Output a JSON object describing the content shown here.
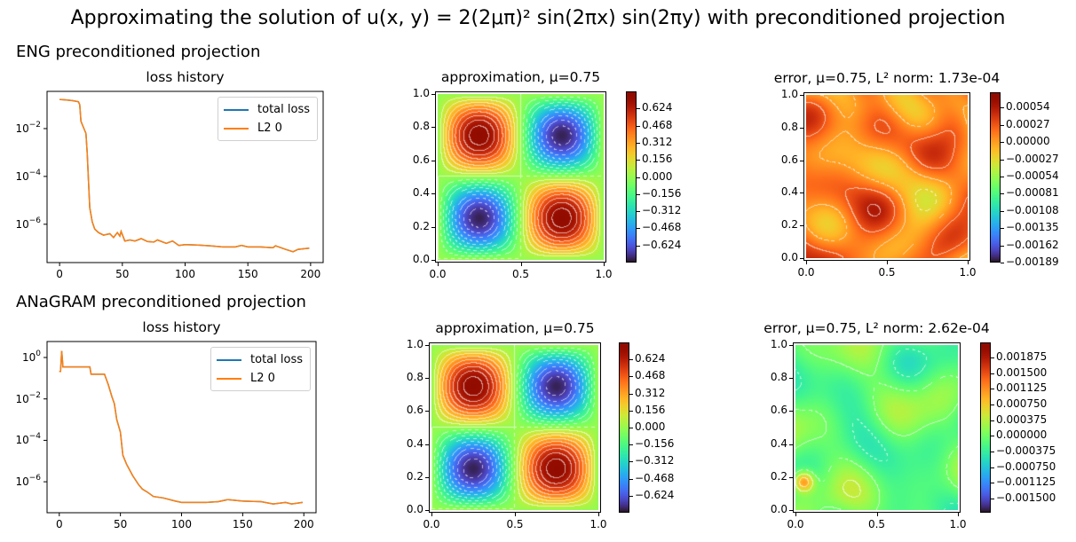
{
  "figure": {
    "title": "Approximating the solution of u(x, y) = 2(2μπ)² sin(2πx) sin(2πy) with preconditioned projection",
    "rows": [
      {
        "label": "ENG preconditioned projection"
      },
      {
        "label": "ANaGRAM preconditioned projection"
      }
    ]
  },
  "chart_data": [
    {
      "type": "line",
      "row": "ENG preconditioned projection",
      "title": "loss history",
      "xlabel": "",
      "ylabel": "",
      "yscale": "log",
      "xlim": [
        -10,
        210
      ],
      "ylim": [
        2.5e-08,
        0.36
      ],
      "xticks": [
        {
          "value": 0,
          "label": "0"
        },
        {
          "value": 50,
          "label": "50"
        },
        {
          "value": 100,
          "label": "100"
        },
        {
          "value": 150,
          "label": "150"
        },
        {
          "value": 200,
          "label": "200"
        }
      ],
      "yticks": [
        {
          "value": 0.01,
          "base": "10",
          "exp": "−2"
        },
        {
          "value": 0.0001,
          "base": "10",
          "exp": "−4"
        },
        {
          "value": 1e-06,
          "base": "10",
          "exp": "−6"
        }
      ],
      "grid": false,
      "legend": {
        "placement": "upper right",
        "entries": [
          "total loss",
          "L2 0"
        ]
      },
      "series": [
        {
          "name": "total loss",
          "color": "#1f77b4",
          "x": [
            0,
            5,
            10,
            15,
            16,
            17,
            19,
            21,
            22,
            23,
            24,
            26,
            28,
            31,
            35,
            40,
            43,
            46,
            48,
            49,
            52,
            56,
            60,
            65,
            70,
            75,
            78,
            85,
            90,
            95,
            100,
            110,
            120,
            130,
            140,
            145,
            150,
            160,
            170,
            172,
            180,
            186,
            190,
            199
          ],
          "y": [
            0.166,
            0.158,
            0.148,
            0.132,
            0.1,
            0.02,
            0.0112,
            0.0063,
            0.001,
            6.3e-05,
            5e-06,
            1.26e-06,
            6.3e-07,
            4.5e-07,
            3.5e-07,
            4e-07,
            2.8e-07,
            4.5e-07,
            3.2e-07,
            5e-07,
            2e-07,
            2.2e-07,
            2e-07,
            2.5e-07,
            1.9e-07,
            1.8e-07,
            2.2e-07,
            1.6e-07,
            2e-07,
            1.3e-07,
            1.4e-07,
            1.35e-07,
            1.26e-07,
            1.12e-07,
            1.12e-07,
            1.3e-07,
            1.12e-07,
            1.12e-07,
            1.05e-07,
            1.26e-07,
            8.9e-08,
            7.1e-08,
            8.9e-08,
            1e-07
          ]
        },
        {
          "name": "L2 0",
          "color": "#ff7f0e",
          "x": [
            0,
            5,
            10,
            15,
            16,
            17,
            19,
            21,
            22,
            23,
            24,
            26,
            28,
            31,
            35,
            40,
            43,
            46,
            48,
            49,
            52,
            56,
            60,
            65,
            70,
            75,
            78,
            85,
            90,
            95,
            100,
            110,
            120,
            130,
            140,
            145,
            150,
            160,
            170,
            172,
            180,
            186,
            190,
            199
          ],
          "y": [
            0.166,
            0.158,
            0.148,
            0.132,
            0.1,
            0.02,
            0.0112,
            0.0063,
            0.001,
            6.3e-05,
            5e-06,
            1.26e-06,
            6.3e-07,
            4.5e-07,
            3.5e-07,
            4e-07,
            2.8e-07,
            4.5e-07,
            3.2e-07,
            5e-07,
            2e-07,
            2.2e-07,
            2e-07,
            2.5e-07,
            1.9e-07,
            1.8e-07,
            2.2e-07,
            1.6e-07,
            2e-07,
            1.3e-07,
            1.4e-07,
            1.35e-07,
            1.26e-07,
            1.12e-07,
            1.12e-07,
            1.3e-07,
            1.12e-07,
            1.12e-07,
            1.05e-07,
            1.26e-07,
            8.9e-08,
            7.1e-08,
            8.9e-08,
            1e-07
          ]
        }
      ]
    },
    {
      "type": "heatmap",
      "row": "ENG preconditioned projection",
      "title": "approximation, μ=0.75",
      "field": "u(x,y)",
      "colormap": "turbo",
      "xlim": [
        0,
        1
      ],
      "ylim": [
        0,
        1
      ],
      "xticks": [
        "0.0",
        "0.5",
        "1.0"
      ],
      "yticks": [
        "0.0",
        "0.2",
        "0.4",
        "0.6",
        "0.8",
        "1.0"
      ],
      "vmin": -0.78,
      "vmax": 0.78,
      "colorbar_ticks": [
        "0.624",
        "0.468",
        "0.312",
        "0.156",
        "0.000",
        "−0.156",
        "−0.312",
        "−0.468",
        "−0.624"
      ]
    },
    {
      "type": "heatmap",
      "row": "ENG preconditioned projection",
      "title": "error, μ=0.75, L² norm: 1.73e-04",
      "field": "error",
      "colormap": "turbo",
      "xlim": [
        0,
        1
      ],
      "ylim": [
        0,
        1
      ],
      "xticks": [
        "0.0",
        "0.5",
        "1.0"
      ],
      "yticks": [
        "0.0",
        "0.2",
        "0.4",
        "0.6",
        "0.8",
        "1.0"
      ],
      "vmin": -0.00189,
      "vmax": 0.00078,
      "colorbar_ticks": [
        "0.00054",
        "0.00027",
        "0.00000",
        "−0.00027",
        "−0.00054",
        "−0.00081",
        "−0.00108",
        "−0.00135",
        "−0.00162",
        "−0.00189"
      ]
    },
    {
      "type": "line",
      "row": "ANaGRAM preconditioned projection",
      "title": "loss history",
      "xlabel": "",
      "ylabel": "",
      "yscale": "log",
      "xlim": [
        -10,
        210
      ],
      "ylim": [
        3.2e-08,
        5.9
      ],
      "xticks": [
        {
          "value": 0,
          "label": "0"
        },
        {
          "value": 50,
          "label": "50"
        },
        {
          "value": 100,
          "label": "100"
        },
        {
          "value": 150,
          "label": "150"
        },
        {
          "value": 200,
          "label": "200"
        }
      ],
      "yticks": [
        {
          "value": 1,
          "base": "10",
          "exp": "0"
        },
        {
          "value": 0.01,
          "base": "10",
          "exp": "−2"
        },
        {
          "value": 0.0001,
          "base": "10",
          "exp": "−4"
        },
        {
          "value": 1e-06,
          "base": "10",
          "exp": "−6"
        }
      ],
      "grid": false,
      "legend": {
        "placement": "upper right",
        "entries": [
          "total loss",
          "L2 0"
        ]
      },
      "series": [
        {
          "name": "total loss",
          "color": "#1f77b4",
          "x": [
            0,
            1,
            2,
            3,
            25,
            26,
            37,
            40,
            43,
            45,
            47,
            50,
            52,
            55,
            60,
            65,
            68,
            72,
            77,
            85,
            95,
            100,
            110,
            120,
            130,
            138,
            150,
            165,
            175,
            185,
            190,
            199
          ],
          "y": [
            0.21,
            0.21,
            2.1,
            0.35,
            0.35,
            0.155,
            0.155,
            0.05,
            0.013,
            0.0059,
            0.001,
            0.00025,
            1.9e-05,
            7.1e-06,
            2e-06,
            7.1e-07,
            4.4e-07,
            3.2e-07,
            1.95e-07,
            1.66e-07,
            1.17e-07,
            1e-07,
            1e-07,
            1e-07,
            1.1e-07,
            1.38e-07,
            1.17e-07,
            1.1e-07,
            8.5e-08,
            1e-07,
            8.5e-08,
            1e-07
          ]
        },
        {
          "name": "L2 0",
          "color": "#ff7f0e",
          "x": [
            0,
            1,
            2,
            3,
            25,
            26,
            37,
            40,
            43,
            45,
            47,
            50,
            52,
            55,
            60,
            65,
            68,
            72,
            77,
            85,
            95,
            100,
            110,
            120,
            130,
            138,
            150,
            165,
            175,
            185,
            190,
            199
          ],
          "y": [
            0.21,
            0.21,
            2.1,
            0.35,
            0.35,
            0.155,
            0.155,
            0.05,
            0.013,
            0.0059,
            0.001,
            0.00025,
            1.9e-05,
            7.1e-06,
            2e-06,
            7.1e-07,
            4.4e-07,
            3.2e-07,
            1.95e-07,
            1.66e-07,
            1.17e-07,
            1e-07,
            1e-07,
            1e-07,
            1.1e-07,
            1.38e-07,
            1.17e-07,
            1.1e-07,
            8.5e-08,
            1e-07,
            8.5e-08,
            1e-07
          ]
        }
      ]
    },
    {
      "type": "heatmap",
      "row": "ANaGRAM preconditioned projection",
      "title": "approximation, μ=0.75",
      "field": "u(x,y)",
      "colormap": "turbo",
      "xlim": [
        0,
        1
      ],
      "ylim": [
        0,
        1
      ],
      "xticks": [
        "0.0",
        "0.5",
        "1.0"
      ],
      "yticks": [
        "0.0",
        "0.2",
        "0.4",
        "0.6",
        "0.8",
        "1.0"
      ],
      "vmin": -0.78,
      "vmax": 0.78,
      "colorbar_ticks": [
        "0.624",
        "0.468",
        "0.312",
        "0.156",
        "0.000",
        "−0.156",
        "−0.312",
        "−0.468",
        "−0.624"
      ]
    },
    {
      "type": "heatmap",
      "row": "ANaGRAM preconditioned projection",
      "title": "error, μ=0.75, L² norm: 2.62e-04",
      "field": "error",
      "colormap": "turbo",
      "xlim": [
        0,
        1
      ],
      "ylim": [
        0,
        1
      ],
      "xticks": [
        "0.0",
        "0.5",
        "1.0"
      ],
      "yticks": [
        "0.0",
        "0.2",
        "0.4",
        "0.6",
        "0.8",
        "1.0"
      ],
      "vmin": -0.00184,
      "vmax": 0.00224,
      "colorbar_ticks": [
        "0.001875",
        "0.001500",
        "0.001125",
        "0.000750",
        "0.000375",
        "0.000000",
        "−0.000375",
        "−0.000750",
        "−0.001125",
        "−0.001500"
      ]
    }
  ]
}
